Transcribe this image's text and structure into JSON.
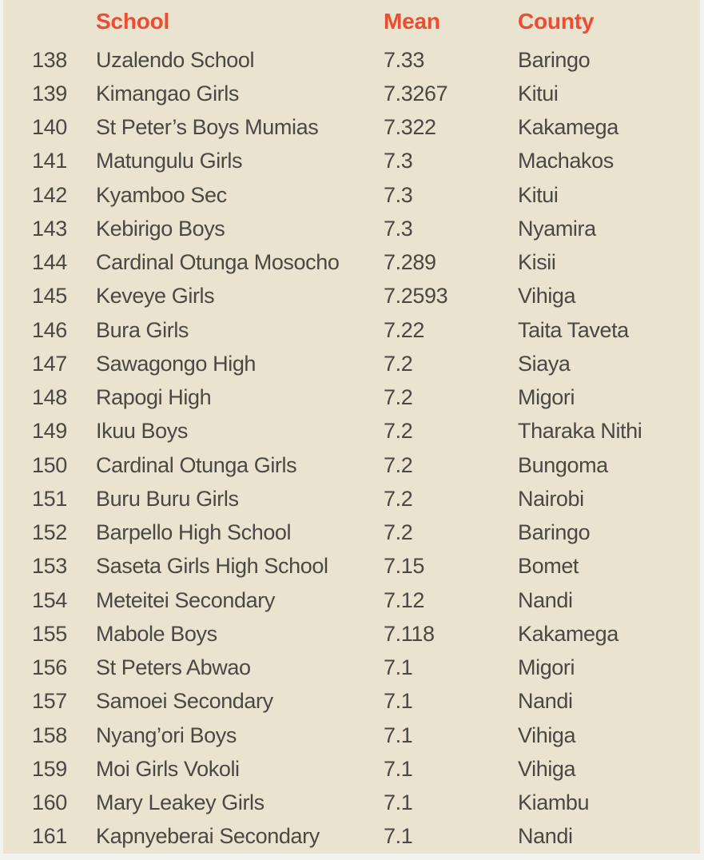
{
  "chart_data": {
    "type": "table",
    "headers": {
      "rank": "",
      "school": "School",
      "mean": "Mean",
      "county": "County"
    },
    "columns": [
      "",
      "School",
      "Mean",
      "County"
    ],
    "rows": [
      {
        "rank": "138",
        "school": "Uzalendo School",
        "mean": "7.33",
        "county": "Baringo"
      },
      {
        "rank": "139",
        "school": "Kimangao Girls",
        "mean": "7.3267",
        "county": "Kitui"
      },
      {
        "rank": "140",
        "school": "St Peter’s Boys Mumias",
        "mean": "7.322",
        "county": "Kakamega"
      },
      {
        "rank": "141",
        "school": "Matungulu Girls",
        "mean": "7.3",
        "county": "Machakos"
      },
      {
        "rank": "142",
        "school": "Kyamboo Sec",
        "mean": "7.3",
        "county": "Kitui"
      },
      {
        "rank": "143",
        "school": "Kebirigo Boys",
        "mean": "7.3",
        "county": "Nyamira"
      },
      {
        "rank": "144",
        "school": "Cardinal Otunga Mosocho",
        "mean": "7.289",
        "county": "Kisii"
      },
      {
        "rank": "145",
        "school": "Keveye Girls",
        "mean": "7.2593",
        "county": "Vihiga"
      },
      {
        "rank": "146",
        "school": "Bura Girls",
        "mean": "7.22",
        "county": "Taita Taveta"
      },
      {
        "rank": "147",
        "school": "Sawagongo High",
        "mean": "7.2",
        "county": "Siaya"
      },
      {
        "rank": "148",
        "school": "Rapogi High",
        "mean": "7.2",
        "county": "Migori"
      },
      {
        "rank": "149",
        "school": "Ikuu Boys",
        "mean": "7.2",
        "county": "Tharaka Nithi"
      },
      {
        "rank": "150",
        "school": "Cardinal Otunga Girls",
        "mean": "7.2",
        "county": "Bungoma"
      },
      {
        "rank": "151",
        "school": "Buru Buru Girls",
        "mean": "7.2",
        "county": "Nairobi"
      },
      {
        "rank": "152",
        "school": "Barpello High School",
        "mean": "7.2",
        "county": "Baringo"
      },
      {
        "rank": "153",
        "school": "Saseta Girls High School",
        "mean": "7.15",
        "county": "Bomet"
      },
      {
        "rank": "154",
        "school": "Meteitei Secondary",
        "mean": "7.12",
        "county": "Nandi"
      },
      {
        "rank": "155",
        "school": "Mabole Boys",
        "mean": "7.118",
        "county": "Kakamega"
      },
      {
        "rank": "156",
        "school": "St Peters Abwao",
        "mean": "7.1",
        "county": "Migori"
      },
      {
        "rank": "157",
        "school": "Samoei Secondary",
        "mean": "7.1",
        "county": "Nandi"
      },
      {
        "rank": "158",
        "school": "Nyang’ori Boys",
        "mean": "7.1",
        "county": "Vihiga"
      },
      {
        "rank": "159",
        "school": "Moi Girls Vokoli",
        "mean": "7.1",
        "county": "Vihiga"
      },
      {
        "rank": "160",
        "school": "Mary Leakey Girls",
        "mean": "7.1",
        "county": "Kiambu"
      },
      {
        "rank": "161",
        "school": "Kapnyeberai Secondary",
        "mean": "7.1",
        "county": "Nandi"
      }
    ]
  },
  "colors": {
    "panel_background": "#e9e3d0",
    "header_text": "#ee4b30",
    "body_text": "#4a4843",
    "page_background": "#f2f2f0"
  }
}
